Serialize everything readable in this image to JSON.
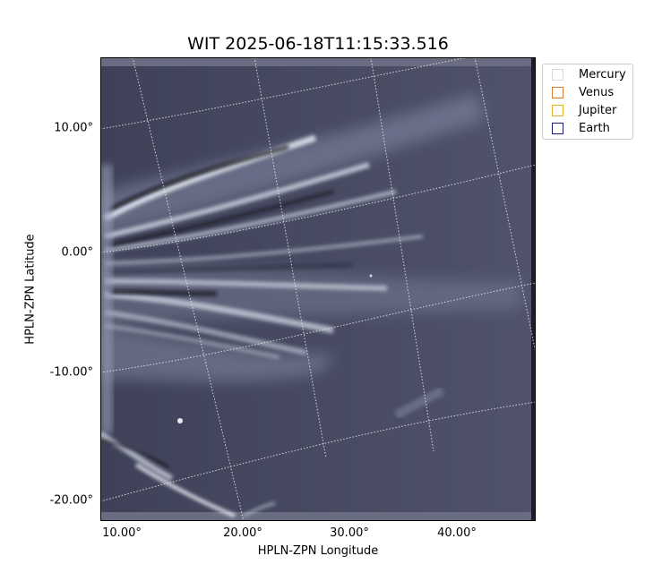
{
  "title": "WIT 2025-06-18T11:15:33.516",
  "xlabel": "HPLN-ZPN Longitude",
  "ylabel": "HPLN-ZPN Latitude",
  "y_ticks": [
    "10.00°",
    "0.00°",
    "-10.00°",
    "-20.00°"
  ],
  "x_ticks": [
    "10.00°",
    "20.00°",
    "30.00°",
    "40.00°"
  ],
  "legend": [
    {
      "label": "Mercury",
      "color": "#e0e0e0"
    },
    {
      "label": "Venus",
      "color": "#e07a30"
    },
    {
      "label": "Jupiter",
      "color": "#e8b020"
    },
    {
      "label": "Earth",
      "color": "#1a1a7a"
    }
  ],
  "image": {
    "description": "solar wind streamers",
    "background_color": "#4a4d66"
  }
}
